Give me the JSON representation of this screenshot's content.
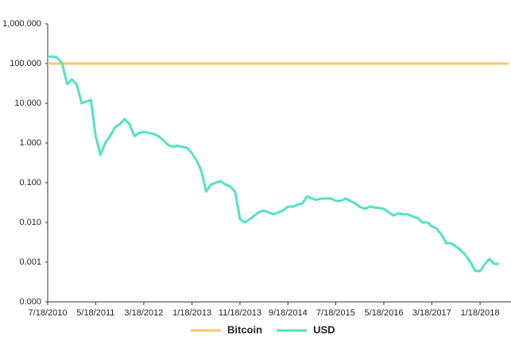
{
  "chart_data": {
    "type": "line",
    "log_scale": true,
    "grid": false,
    "legend": "bottom",
    "xlim": [
      "7/18/2010",
      "7/18/2018"
    ],
    "xticks": [
      "7/18/2010",
      "5/18/2011",
      "3/18/2012",
      "1/18/2013",
      "11/18/2013",
      "9/18/2014",
      "7/18/2015",
      "5/18/2016",
      "3/18/2017",
      "1/18/2018"
    ],
    "ylim": [
      0.0001,
      1000
    ],
    "yticks": [
      {
        "value": 0.0001,
        "label": "0.000"
      },
      0.001,
      {
        "value": 0.01,
        "label": "0.010"
      },
      {
        "value": 0.1,
        "label": "0.100"
      },
      {
        "value": 1,
        "label": "1.000"
      },
      {
        "value": 10,
        "label": "10.000"
      },
      {
        "value": 100,
        "label": "100.000"
      },
      {
        "value": 1000,
        "label": "1,000.000"
      }
    ],
    "series": [
      {
        "name": "Bitcoin",
        "color": "#f6c46e",
        "x": [
          "7/18/2010",
          "7/18/2018"
        ],
        "values": [
          100,
          100
        ]
      },
      {
        "name": "USD",
        "color": "#52e3c2",
        "x": [
          "7/18/2010",
          "8/18/2010",
          "9/18/2010",
          "10/18/2010",
          "11/18/2010",
          "12/18/2010",
          "1/18/2011",
          "2/18/2011",
          "3/18/2011",
          "4/18/2011",
          "5/18/2011",
          "6/18/2011",
          "7/18/2011",
          "8/18/2011",
          "9/18/2011",
          "10/18/2011",
          "11/18/2011",
          "12/18/2011",
          "1/18/2012",
          "2/18/2012",
          "3/18/2012",
          "4/18/2012",
          "5/18/2012",
          "6/18/2012",
          "7/18/2012",
          "8/18/2012",
          "9/18/2012",
          "10/18/2012",
          "11/18/2012",
          "12/18/2012",
          "1/18/2013",
          "2/18/2013",
          "3/18/2013",
          "4/18/2013",
          "5/18/2013",
          "6/18/2013",
          "7/18/2013",
          "8/18/2013",
          "9/18/2013",
          "10/18/2013",
          "11/18/2013",
          "12/18/2013",
          "1/18/2014",
          "2/18/2014",
          "3/18/2014",
          "4/18/2014",
          "5/18/2014",
          "6/18/2014",
          "7/18/2014",
          "8/18/2014",
          "9/18/2014",
          "10/18/2014",
          "11/18/2014",
          "12/18/2014",
          "1/18/2015",
          "2/18/2015",
          "3/18/2015",
          "4/18/2015",
          "5/18/2015",
          "6/18/2015",
          "7/18/2015",
          "8/18/2015",
          "9/18/2015",
          "10/18/2015",
          "11/18/2015",
          "12/18/2015",
          "1/18/2016",
          "2/18/2016",
          "3/18/2016",
          "4/18/2016",
          "5/18/2016",
          "6/18/2016",
          "7/18/2016",
          "8/18/2016",
          "9/18/2016",
          "10/18/2016",
          "11/18/2016",
          "12/18/2016",
          "1/18/2017",
          "2/18/2017",
          "3/18/2017",
          "4/18/2017",
          "5/18/2017",
          "6/18/2017",
          "7/18/2017",
          "8/18/2017",
          "9/18/2017",
          "10/18/2017",
          "11/18/2017",
          "12/18/2017",
          "1/18/2018",
          "2/18/2018",
          "3/18/2018",
          "4/18/2018",
          "5/18/2018"
        ],
        "values": [
          150,
          150,
          140,
          100,
          30,
          40,
          30,
          10,
          11,
          12,
          1.5,
          0.5,
          1,
          1.5,
          2.5,
          3,
          4,
          3,
          1.5,
          1.8,
          1.9,
          1.8,
          1.7,
          1.5,
          1.2,
          0.9,
          0.8,
          0.85,
          0.8,
          0.75,
          0.55,
          0.35,
          0.2,
          0.06,
          0.09,
          0.1,
          0.11,
          0.09,
          0.08,
          0.06,
          0.012,
          0.01,
          0.012,
          0.015,
          0.018,
          0.02,
          0.018,
          0.016,
          0.018,
          0.02,
          0.025,
          0.025,
          0.028,
          0.03,
          0.045,
          0.04,
          0.037,
          0.04,
          0.04,
          0.04,
          0.035,
          0.035,
          0.04,
          0.035,
          0.03,
          0.025,
          0.022,
          0.025,
          0.024,
          0.023,
          0.022,
          0.018,
          0.015,
          0.017,
          0.016,
          0.016,
          0.014,
          0.013,
          0.01,
          0.01,
          0.008,
          0.007,
          0.005,
          0.003,
          0.003,
          0.0025,
          0.002,
          0.0015,
          0.001,
          0.0006,
          0.0006,
          0.0009,
          0.0012,
          0.0009,
          0.0009
        ]
      }
    ]
  }
}
